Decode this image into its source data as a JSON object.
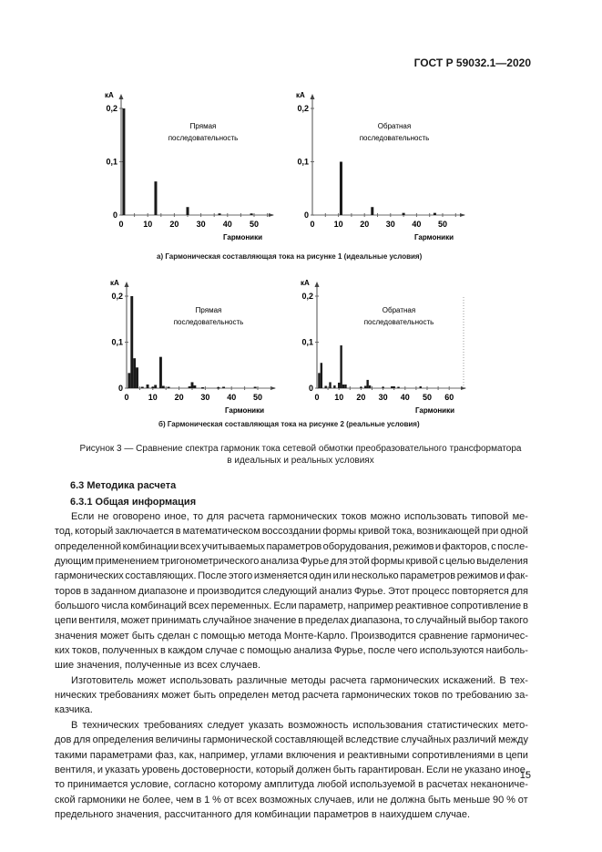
{
  "header": {
    "standard": "ГОСТ Р 59032.1—2020"
  },
  "figure": {
    "subcaption_a": "а) Гармоническая составляющая тока на рисунке 1 (идеальные условия)",
    "subcaption_b": "б) Гармоническая составляющая тока на рисунке 2 (реальные условия)",
    "caption_line1": "Рисунок 3 — Сравнение спектра гармоник тока сетевой обмотки преобразовательного трансформатора",
    "caption_line2": "в идеальных и реальных условиях"
  },
  "chart_data": [
    {
      "type": "bar",
      "panel": "a-left",
      "ylabel": "кА",
      "xlabel": "Гармоники",
      "annotation": [
        "Прямая",
        "последовательность"
      ],
      "yticks": [
        "0",
        "0,1",
        "0,2"
      ],
      "ylim": [
        0,
        0.2
      ],
      "xticks": [
        0,
        10,
        20,
        30,
        40,
        50
      ],
      "xlim": [
        0,
        55
      ],
      "x": [
        1,
        13,
        25,
        37,
        49
      ],
      "values": [
        0.2,
        0.063,
        0.015,
        0.003,
        0.003
      ]
    },
    {
      "type": "bar",
      "panel": "a-right",
      "ylabel": "кА",
      "xlabel": "Гармоники",
      "annotation": [
        "Обратная",
        "последовательность"
      ],
      "yticks": [
        "0",
        "0,1",
        "0,2"
      ],
      "ylim": [
        0,
        0.2
      ],
      "xticks": [
        0,
        10,
        20,
        30,
        40,
        50
      ],
      "xlim": [
        0,
        55
      ],
      "x": [
        11,
        23,
        35,
        47
      ],
      "values": [
        0.1,
        0.015,
        0.004,
        0.004
      ]
    },
    {
      "type": "bar",
      "panel": "b-left",
      "ylabel": "кА",
      "xlabel": "Гармоники",
      "annotation": [
        "Прямая",
        "последовательность"
      ],
      "yticks": [
        "0",
        "0,1",
        "0,2"
      ],
      "ylim": [
        0,
        0.2
      ],
      "xticks": [
        0,
        10,
        20,
        30,
        40,
        50
      ],
      "xlim": [
        0,
        55
      ],
      "x": [
        1,
        2,
        3,
        4,
        6,
        8,
        10,
        11,
        13,
        14,
        16,
        24,
        25,
        26,
        29,
        35,
        37,
        49
      ],
      "values": [
        0.033,
        0.2,
        0.065,
        0.045,
        0.003,
        0.008,
        0.003,
        0.007,
        0.068,
        0.005,
        0.003,
        0.004,
        0.013,
        0.006,
        0.002,
        0.002,
        0.003,
        0.003
      ]
    },
    {
      "type": "bar",
      "panel": "b-right",
      "ylabel": "кА",
      "xlabel": "Гармоники",
      "annotation": [
        "Обратная",
        "последовательность"
      ],
      "yticks": [
        "0",
        "0,1",
        "0,2"
      ],
      "ylim": [
        0,
        0.2
      ],
      "xticks": [
        0,
        10,
        20,
        30,
        40,
        50,
        60
      ],
      "xlim": [
        0,
        62
      ],
      "x": [
        1,
        2,
        4,
        6,
        8,
        10,
        11,
        12,
        13,
        20,
        22,
        23,
        24,
        30,
        34,
        35,
        37,
        47
      ],
      "values": [
        0.033,
        0.055,
        0.005,
        0.013,
        0.006,
        0.012,
        0.093,
        0.008,
        0.008,
        0.003,
        0.005,
        0.018,
        0.006,
        0.003,
        0.004,
        0.004,
        0.003,
        0.004
      ]
    }
  ],
  "section": {
    "h1": "6.3  Методика расчета",
    "h2": "6.3.1  Общая информация"
  },
  "paragraphs": [
    [
      "Если не оговорено иное, то для расчета гармонических токов можно использовать типовой ме-",
      "тод, который заключается в математическом воссоздании формы кривой тока, возникающей при одной",
      "определенной комбинации всех учитываемых параметров оборудования, режимов и факторов, с после-",
      "дующим применением тригонометрического анализа Фурье для этой формы кривой с целью выделения",
      "гармонических составляющих. После этого изменяется один или несколько параметров режимов и фак-",
      "торов в заданном диапазоне и производится следующий анализ Фурье. Этот процесс повторяется для",
      "большого числа комбинаций всех переменных. Если параметр, например реактивное сопротивление в",
      "цепи вентиля, может принимать случайное значение в пределах диапазона, то случайный выбор такого",
      "значения может быть сделан с помощью метода Монте-Карло. Производится сравнение гармоничес-",
      "ких токов, полученных в каждом случае с помощью анализа Фурье, после чего используются наиболь-",
      "шие значения, полученные из всех случаев."
    ],
    [
      "Изготовитель может использовать различные методы расчета гармонических искажений. В тех-",
      "нических требованиях может быть определен метод расчета гармонических токов по требованию за-",
      "казчика."
    ],
    [
      "В технических требованиях следует указать возможность использования статистических мето-",
      "дов для определения величины гармонической составляющей вследствие случайных различий между",
      "такими параметрами фаз, как, например, углами включения и реактивными сопротивлениями в цепи",
      "вентиля, и указать уровень достоверности, который должен быть гарантирован. Если не указано иное,",
      "то принимается условие, согласно которому амплитуда любой используемой в расчетах неканониче-",
      "ской гармоники не более, чем в 1 % от всех возможных случаев, или не должна быть меньше 90 % от",
      "предельного значения, рассчитанного для комбинации параметров в наихудшем случае."
    ]
  ],
  "footer": {
    "page_number": "15"
  }
}
